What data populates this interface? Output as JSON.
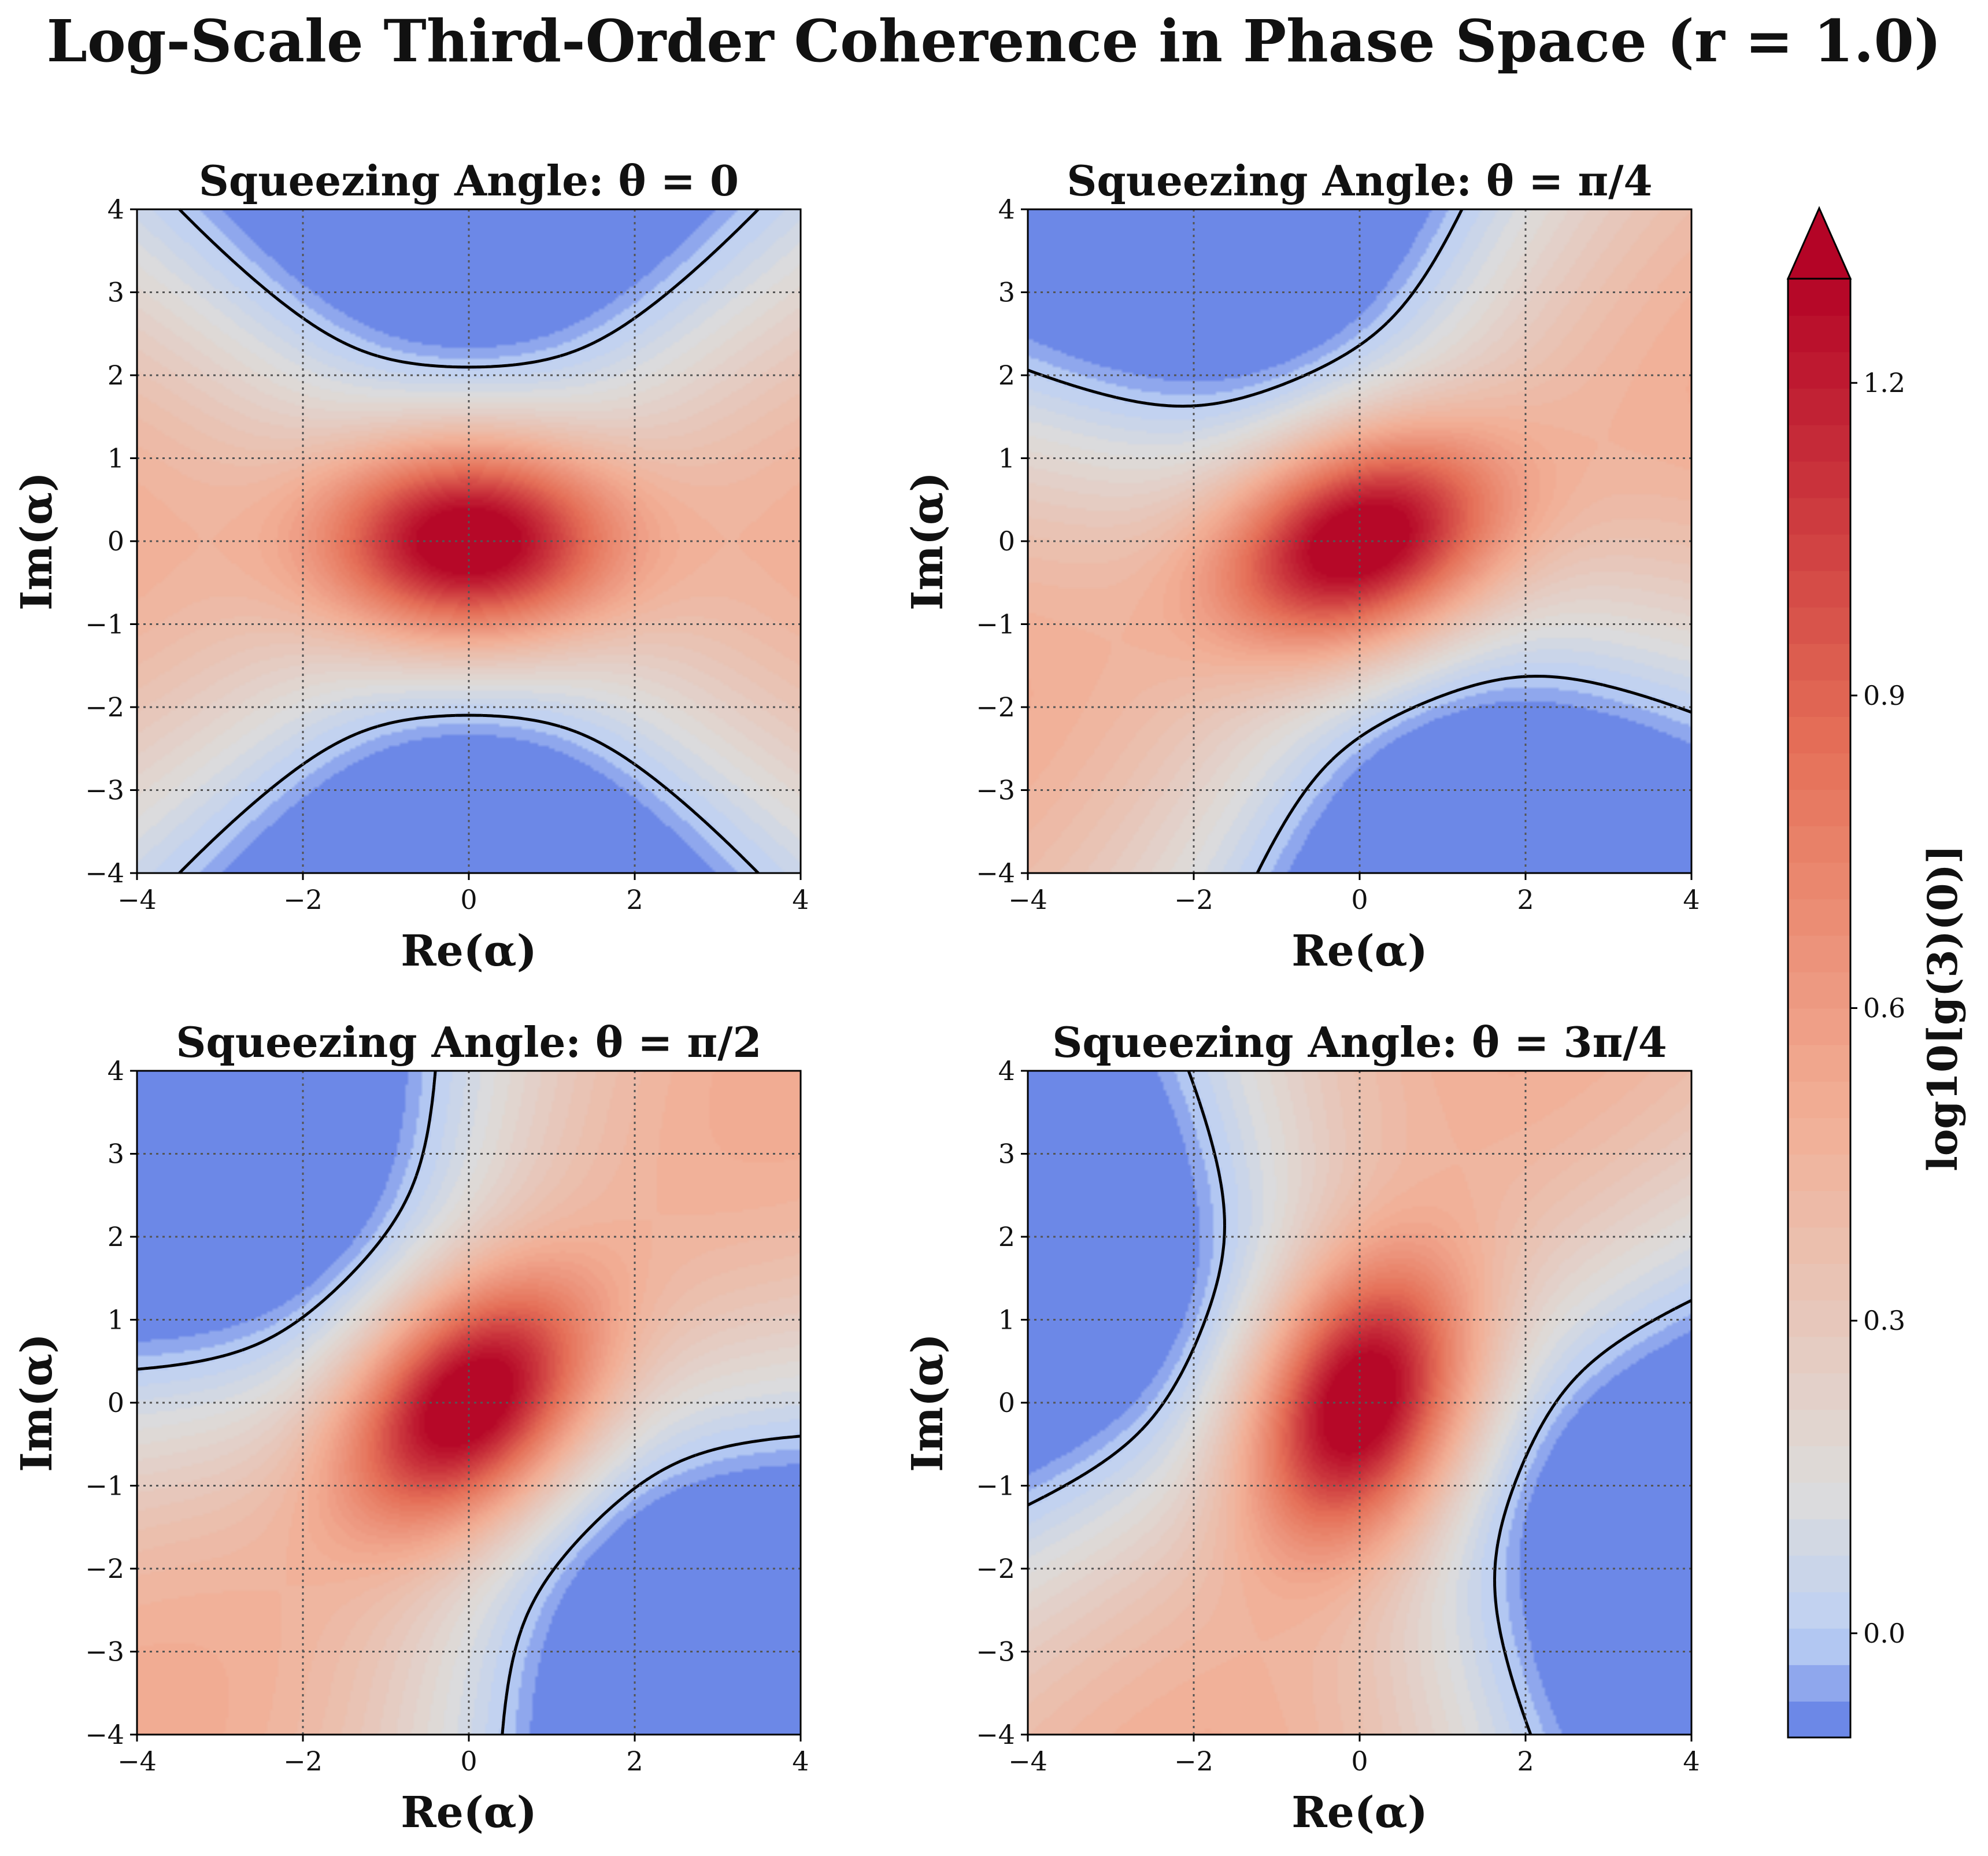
{
  "title": "Log-Scale Third-Order Coherence in Phase Space (r = 1.0)",
  "chart_data": {
    "type": "heatmap",
    "r": 1.0,
    "colormap": "coolwarm",
    "contour_level": 0.0,
    "contour_style": "dashed black",
    "xlim": [
      -4,
      4
    ],
    "ylim": [
      -4,
      4
    ],
    "xticks": [
      -4,
      -2,
      0,
      2,
      4
    ],
    "yticks": [
      -4,
      -3,
      -2,
      -1,
      0,
      1,
      2,
      3,
      4
    ],
    "xlabel": "Re(α)",
    "ylabel": "Im(α)",
    "grid": true,
    "panels": [
      {
        "title": "Squeezing Angle: θ = 0",
        "theta_rad": 0,
        "max_value": 1.3
      },
      {
        "title": "Squeezing Angle: θ = π/4",
        "theta_rad": 0.7854,
        "max_value": 1.3
      },
      {
        "title": "Squeezing Angle: θ = π/2",
        "theta_rad": 1.5708,
        "max_value": 1.3
      },
      {
        "title": "Squeezing Angle: θ = 3π/4",
        "theta_rad": 2.3562,
        "max_value": 1.3
      }
    ],
    "colorbar": {
      "label": "log10[g(3)(0)]",
      "ticks": [
        0.0,
        0.3,
        0.6,
        0.9,
        1.2
      ],
      "tick_labels": [
        "0.0",
        "0.3",
        "0.6",
        "0.9",
        "1.2"
      ],
      "range": [
        -0.1,
        1.3
      ],
      "extend": "max"
    },
    "colors": {
      "low": "#5a78e4",
      "below_zero": "#bcd0f4",
      "neutral": "#dddcdb",
      "high": "#b40426"
    }
  }
}
